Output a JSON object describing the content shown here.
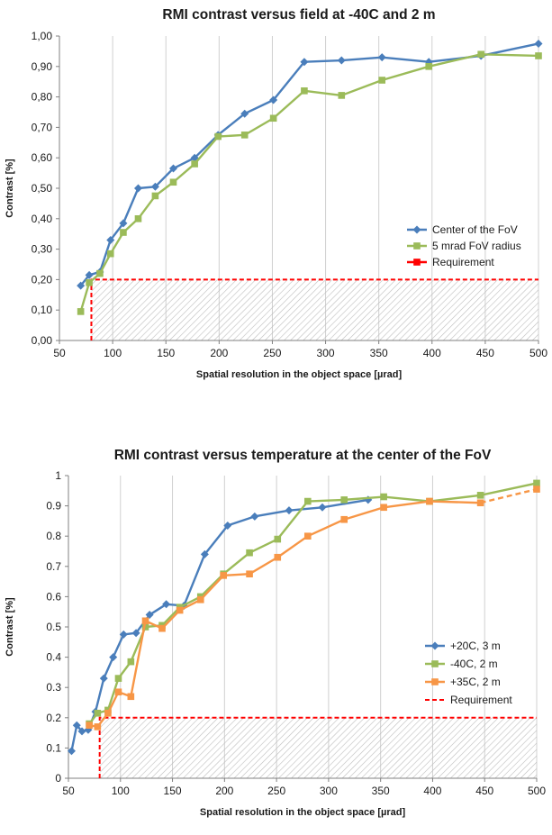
{
  "chart_data": [
    {
      "type": "line",
      "title": "RMI contrast versus field at -40C and 2 m",
      "xlabel": "Spatial resolution in the object space [µrad]",
      "ylabel": "Contrast [%]",
      "xlim": [
        50,
        500
      ],
      "ylim": [
        0,
        1
      ],
      "xticks": [
        "50",
        "100",
        "150",
        "200",
        "250",
        "300",
        "350",
        "400",
        "450",
        "500"
      ],
      "yticks": [
        "0,00",
        "0,10",
        "0,20",
        "0,30",
        "0,40",
        "0,50",
        "0,60",
        "0,70",
        "0,80",
        "0,90",
        "1,00"
      ],
      "grid": "vertical",
      "legend_position": "right",
      "series": [
        {
          "name": "Center of the FoV",
          "color": "#4a7ebb",
          "marker": "diamond",
          "x": [
            70,
            78,
            88,
            98,
            110,
            124,
            140,
            157,
            177,
            199,
            224,
            251,
            280,
            315,
            353,
            397,
            446,
            500
          ],
          "y": [
            0.18,
            0.215,
            0.225,
            0.33,
            0.385,
            0.5,
            0.505,
            0.565,
            0.6,
            0.675,
            0.745,
            0.79,
            0.915,
            0.92,
            0.93,
            0.915,
            0.935,
            0.975
          ]
        },
        {
          "name": "5 mrad FoV radius",
          "color": "#9bbb59",
          "marker": "square",
          "x": [
            70,
            78,
            88,
            98,
            110,
            124,
            140,
            157,
            177,
            199,
            224,
            251,
            280,
            315,
            353,
            397,
            446,
            500
          ],
          "y": [
            0.095,
            0.19,
            0.22,
            0.285,
            0.355,
            0.4,
            0.475,
            0.52,
            0.58,
            0.67,
            0.675,
            0.73,
            0.82,
            0.805,
            0.855,
            0.9,
            0.94,
            0.935
          ]
        },
        {
          "name": "Requirement",
          "color": "#ff0000",
          "style": "dashed",
          "x_min": 80,
          "y_min": 0.2
        }
      ]
    },
    {
      "type": "line",
      "title": "RMI contrast versus temperature at the center of the FoV",
      "xlabel": "Spatial resolution in the object space [µrad]",
      "ylabel": "Contrast [%]",
      "xlim": [
        50,
        500
      ],
      "ylim": [
        0,
        1
      ],
      "xticks": [
        "50",
        "100",
        "150",
        "200",
        "250",
        "300",
        "350",
        "400",
        "450",
        "500"
      ],
      "yticks": [
        "0",
        "0.1",
        "0.2",
        "0.3",
        "0.4",
        "0.5",
        "0.6",
        "0.7",
        "0.8",
        "0.9",
        "1"
      ],
      "grid": "vertical",
      "legend_position": "right",
      "series": [
        {
          "name": "+20C, 3 m",
          "color": "#4a7ebb",
          "marker": "diamond",
          "x": [
            53,
            58,
            63,
            69,
            76,
            84,
            93,
            103,
            115,
            128,
            144,
            161,
            181,
            203,
            229,
            262,
            294,
            338
          ],
          "y": [
            0.09,
            0.175,
            0.155,
            0.16,
            0.22,
            0.33,
            0.4,
            0.475,
            0.48,
            0.54,
            0.575,
            0.57,
            0.74,
            0.835,
            0.865,
            0.885,
            0.895,
            0.92
          ]
        },
        {
          "name": "-40C, 2 m",
          "color": "#9bbb59",
          "marker": "square",
          "x": [
            70,
            78,
            88,
            98,
            110,
            124,
            140,
            157,
            177,
            199,
            224,
            251,
            280,
            315,
            353,
            397,
            446,
            500
          ],
          "y": [
            0.18,
            0.215,
            0.225,
            0.33,
            0.385,
            0.5,
            0.505,
            0.565,
            0.6,
            0.675,
            0.745,
            0.79,
            0.915,
            0.92,
            0.93,
            0.915,
            0.935,
            0.975
          ]
        },
        {
          "name": "+35C, 2 m",
          "color": "#f79646",
          "marker": "square",
          "x": [
            70,
            78,
            88,
            98,
            110,
            124,
            140,
            157,
            177,
            199,
            224,
            251,
            280,
            315,
            353,
            397,
            446,
            500
          ],
          "y": [
            0.175,
            0.17,
            0.215,
            0.285,
            0.27,
            0.52,
            0.495,
            0.555,
            0.59,
            0.67,
            0.675,
            0.73,
            0.8,
            0.855,
            0.895,
            0.915,
            0.91,
            0.955
          ],
          "dashed_from_x": 446
        },
        {
          "name": "Requirement",
          "color": "#ff0000",
          "style": "dashed",
          "x_min": 80,
          "y_min": 0.2
        }
      ]
    }
  ]
}
